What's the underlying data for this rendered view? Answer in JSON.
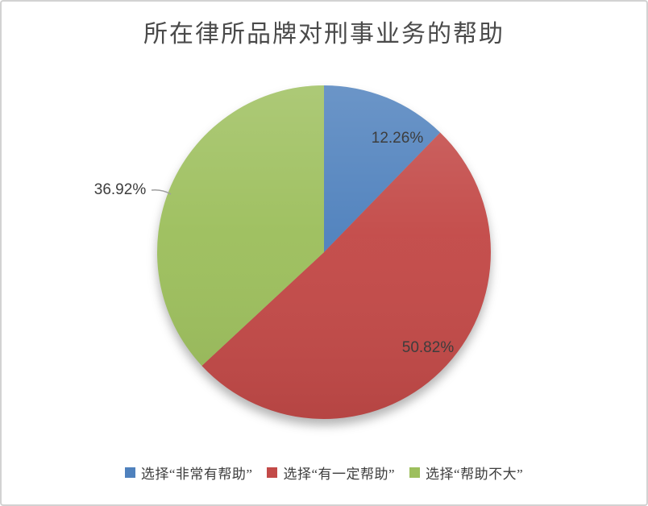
{
  "chart_data": {
    "type": "pie",
    "title": "所在律所品牌对刑事业务的帮助",
    "legend_position": "bottom",
    "start_angle_deg": 0,
    "direction": "clockwise",
    "series": [
      {
        "id": "very-helpful",
        "name": "选择“非常有帮助”",
        "value": 12.26,
        "label": "12.26%",
        "color": "#4f81bd"
      },
      {
        "id": "some-help",
        "name": "选择“有一定帮助”",
        "value": 50.82,
        "label": "50.82%",
        "color": "#c34a48"
      },
      {
        "id": "not-much-help",
        "name": "选择“帮助不大”",
        "value": 36.92,
        "label": "36.92%",
        "color": "#9dbf5d"
      }
    ],
    "leader_line_color": "#9e9e9e",
    "title_color": "#4a4a4a",
    "label_color": "#3d3d3d"
  }
}
